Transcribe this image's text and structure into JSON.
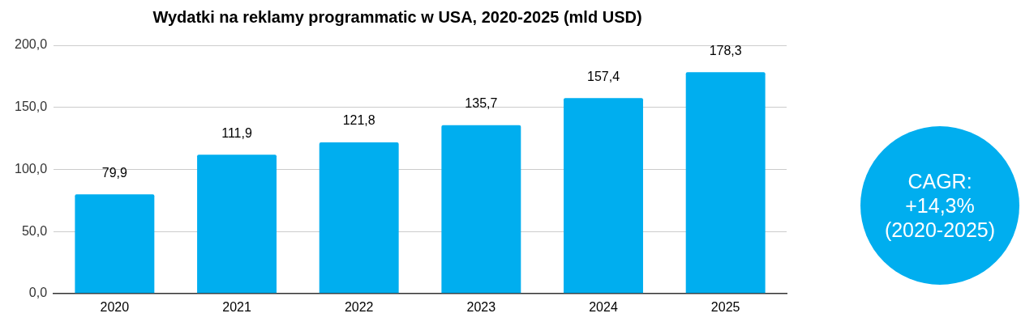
{
  "chart_data": {
    "type": "bar",
    "title": "Wydatki na reklamy programmatic w USA, 2020-2025 (mld USD)",
    "categories": [
      "2020",
      "2021",
      "2022",
      "2023",
      "2024",
      "2025"
    ],
    "values": [
      79.9,
      111.9,
      121.8,
      135.7,
      157.4,
      178.3
    ],
    "value_labels": [
      "79,9",
      "111,9",
      "121,8",
      "135,7",
      "157,4",
      "178,3"
    ],
    "color": "#00aeef",
    "ylim": [
      0,
      200
    ],
    "yticks": [
      {
        "value": 0,
        "label": "0,0"
      },
      {
        "value": 50,
        "label": "50,0"
      },
      {
        "value": 100,
        "label": "100,0"
      },
      {
        "value": 150,
        "label": "150,0"
      },
      {
        "value": 200,
        "label": "200,0"
      }
    ],
    "grid": "y",
    "legend": false,
    "annotations": [
      "CAGR: +14,3% (2020-2025)"
    ]
  }
}
